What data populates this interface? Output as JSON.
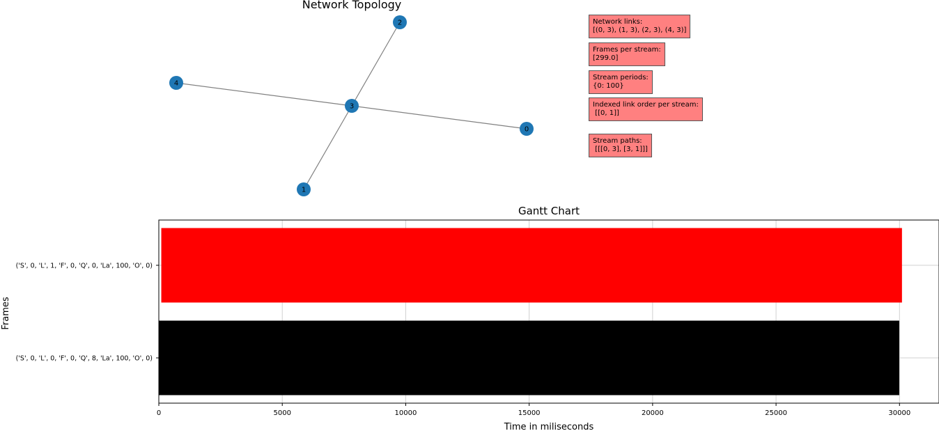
{
  "topology": {
    "title": "Network  Topology",
    "nodes": [
      "0",
      "1",
      "2",
      "3",
      "4"
    ],
    "edges": [
      [
        0,
        3
      ],
      [
        1,
        3
      ],
      [
        2,
        3
      ],
      [
        4,
        3
      ]
    ],
    "node_color": "#1f77b4",
    "edge_color": "#808080"
  },
  "info_boxes": [
    {
      "label": "Network links:",
      "value": "[(0, 3), (1, 3), (2, 3), (4, 3)]"
    },
    {
      "label": "Frames per stream:",
      "value": "[299.0]"
    },
    {
      "label": "Stream periods:",
      "value": "{0: 100}"
    },
    {
      "label": "Indexed link order per stream:",
      "value": " [[0, 1]]"
    },
    {
      "label": "Stream paths:",
      "value": " [[[0, 3], [3, 1]]]"
    }
  ],
  "info_box_color": "#ff8080",
  "chart_data": {
    "type": "bar",
    "orientation": "horizontal",
    "title": "Gantt Chart",
    "xlabel": "Time in miliseconds",
    "ylabel": "Frames",
    "xlim": [
      0,
      31600
    ],
    "xticks": [
      0,
      5000,
      10000,
      15000,
      20000,
      25000,
      30000
    ],
    "grid": true,
    "bars": [
      {
        "label": "('S', 0, 'L', 1, 'F', 0, 'Q', 0, 'La', 100, 'O', 0)",
        "start": 100,
        "end": 30100,
        "color": "#ff0000"
      },
      {
        "label": "('S', 0, 'L', 0, 'F', 0, 'Q', 8, 'La', 100, 'O', 0)",
        "start": 0,
        "end": 29990,
        "color": "#000000"
      }
    ]
  }
}
